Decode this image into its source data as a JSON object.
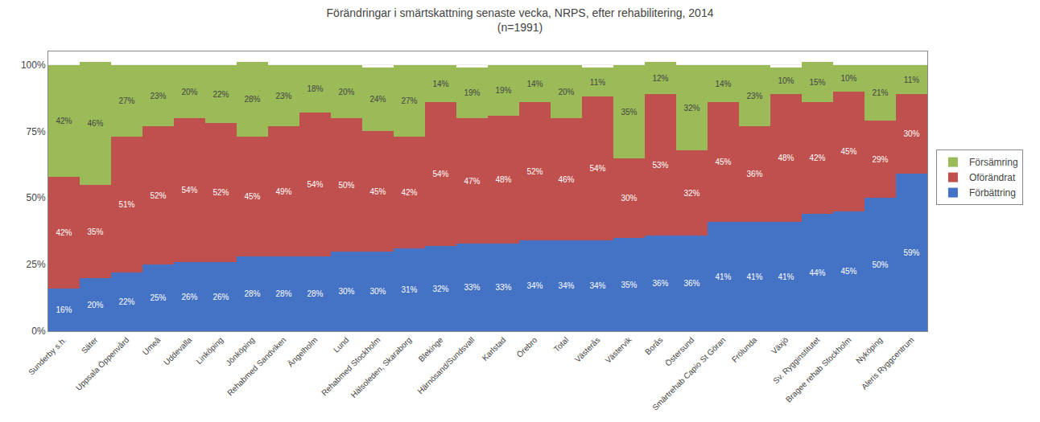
{
  "chart_data": {
    "type": "bar",
    "title": "Förändringar i smärtskattning senaste vecka, NRPS, efter rehabilitering, 2014\n(n=1991)",
    "categories": [
      "Sunderby s.h.",
      "Säter",
      "Uppsala Öppenvård",
      "Umeå",
      "Uddevalla",
      "Linköping",
      "Jönköping",
      "Rehabmed Sandviken",
      "Ängelholm",
      "Lund",
      "Rehabmed Stockholm",
      "Hälsoleden, Skaraborg",
      "Blekinge",
      "Härnösand/Sundsvall",
      "Karlstad",
      "Örebro",
      "Total",
      "Västerås",
      "Västervik",
      "Borås",
      "Östersund",
      "Smärtrehab Capio St Göran",
      "Frölunda",
      "Växjö",
      "Sv. Rygginstitutet",
      "Bragee rehab Stockholm",
      "Nyköping",
      "Aleris Ryggcentrum"
    ],
    "series": [
      {
        "name": "Förbättring",
        "color": "#4472C4",
        "values": [
          16,
          20,
          22,
          25,
          26,
          26,
          28,
          28,
          28,
          30,
          30,
          31,
          32,
          33,
          33,
          34,
          34,
          34,
          35,
          36,
          36,
          41,
          41,
          41,
          44,
          45,
          50,
          59
        ],
        "value_labels": [
          "16%",
          "20%",
          "22%",
          "25%",
          "26%",
          "26%",
          "28%",
          "28%",
          "28%",
          "30%",
          "30%",
          "31%",
          "32%",
          "33%",
          "33%",
          "34%",
          "34%",
          "34%",
          "35%",
          "36%",
          "36%",
          "41%",
          "41%",
          "41%",
          "44%",
          "45%",
          "50%",
          "59%"
        ]
      },
      {
        "name": "Oförändrat",
        "color": "#C0504D",
        "values": [
          42,
          35,
          51,
          52,
          54,
          52,
          45,
          49,
          54,
          50,
          45,
          42,
          54,
          47,
          48,
          52,
          46,
          54,
          30,
          53,
          32,
          45,
          36,
          48,
          42,
          45,
          29,
          30
        ],
        "value_labels": [
          "42%",
          "35%",
          "51%",
          "52%",
          "54%",
          "52%",
          "45%",
          "49%",
          "54%",
          "50%",
          "45%",
          "42%",
          "54%",
          "47%",
          "48%",
          "52%",
          "46%",
          "54%",
          "30%",
          "53%",
          "32%",
          "45%",
          "36%",
          "48%",
          "42%",
          "45%",
          "29%",
          "30%"
        ]
      },
      {
        "name": "Försämring",
        "color": "#9BBB59",
        "values": [
          42,
          46,
          27,
          23,
          20,
          22,
          28,
          23,
          18,
          20,
          24,
          27,
          14,
          19,
          19,
          14,
          20,
          11,
          35,
          12,
          32,
          14,
          23,
          10,
          15,
          10,
          21,
          11
        ],
        "value_labels": [
          "42%",
          "46%",
          "27%",
          "23%",
          "20%",
          "22%",
          "28%",
          "23%",
          "18%",
          "20%",
          "24%",
          "27%",
          "14%",
          "19%",
          "19%",
          "14%",
          "20%",
          "11%",
          "35%",
          "12%",
          "32%",
          "14%",
          "23%",
          "10%",
          "15%",
          "10%",
          "21%",
          "11%"
        ]
      }
    ],
    "ylim": [
      0,
      105
    ],
    "yticks": [
      {
        "value": 0,
        "label": "0%"
      },
      {
        "value": 25,
        "label": "25%"
      },
      {
        "value": 50,
        "label": "50%"
      },
      {
        "value": 75,
        "label": "75%"
      },
      {
        "value": 100,
        "label": "100%"
      }
    ],
    "grid": true,
    "stacked": true,
    "data_labels": true,
    "legend": "right"
  }
}
